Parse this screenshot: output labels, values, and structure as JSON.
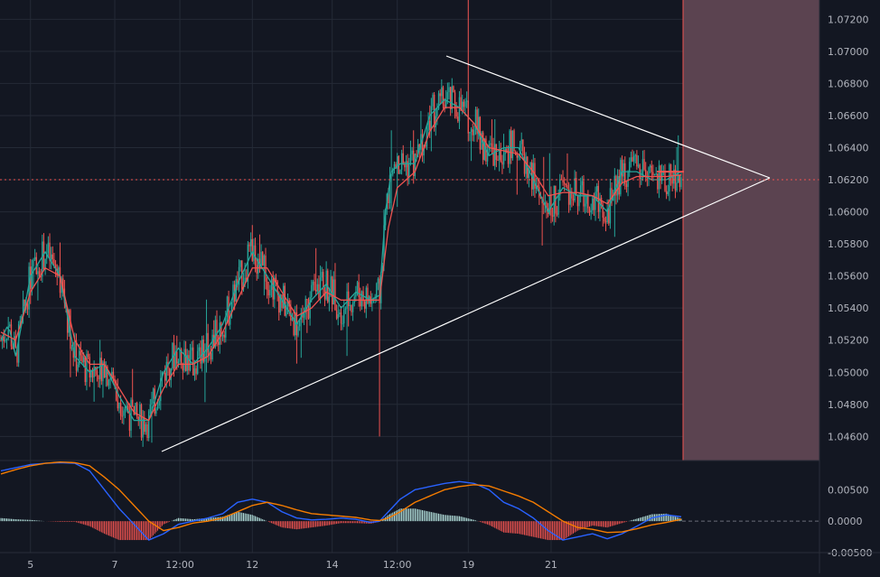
{
  "theme": {
    "background": "#131722",
    "grid": "#242a36",
    "text": "#b2b5be",
    "candle_up": "#26a69a",
    "candle_down": "#ef5350",
    "ma_fast": "#26a69a",
    "ma_slow": "#ef5350",
    "triangle": "#ffffff",
    "forecast_zone": "#5b4350",
    "forecast_border": "#ef5350",
    "price_line": "#ef5350",
    "macd_line": "#2962ff",
    "signal_line": "#f57c00",
    "hist_up": "#b2dfdb",
    "hist_down": "#ef5350"
  },
  "chart_data": [
    {
      "type": "candlestick",
      "pane": "price",
      "title": "",
      "x_ticks": [
        "5",
        "7",
        "12:00",
        "12",
        "14",
        "12:00",
        "19",
        "21"
      ],
      "y_ticks": [
        "1.07200",
        "1.07000",
        "1.06800",
        "1.06600",
        "1.06400",
        "1.06200",
        "1.06000",
        "1.05800",
        "1.05600",
        "1.05400",
        "1.05200",
        "1.05000",
        "1.04800",
        "1.04600"
      ],
      "ylim": [
        1.0445,
        1.0732
      ],
      "grid": true,
      "current_price": 1.062,
      "series": [
        {
          "name": "",
          "style": "moving-average-fast",
          "key_points": [
            [
              0,
              1.052
            ],
            [
              5,
              1.053
            ],
            [
              10,
              1.051
            ],
            [
              20,
              1.056
            ],
            [
              30,
              1.0575
            ],
            [
              40,
              1.056
            ],
            [
              50,
              1.051
            ],
            [
              60,
              1.05
            ],
            [
              70,
              1.0505
            ],
            [
              80,
              1.0485
            ],
            [
              90,
              1.047
            ],
            [
              100,
              1.047
            ],
            [
              110,
              1.05
            ],
            [
              120,
              1.0515
            ],
            [
              130,
              1.0505
            ],
            [
              140,
              1.0515
            ],
            [
              150,
              1.053
            ],
            [
              160,
              1.0555
            ],
            [
              170,
              1.0575
            ],
            [
              180,
              1.056
            ],
            [
              190,
              1.0545
            ],
            [
              200,
              1.053
            ],
            [
              210,
              1.0545
            ],
            [
              220,
              1.0555
            ],
            [
              230,
              1.054
            ],
            [
              240,
              1.055
            ],
            [
              250,
              1.0545
            ],
            [
              256,
              1.0548
            ],
            [
              260,
              1.06
            ],
            [
              264,
              1.0625
            ],
            [
              270,
              1.063
            ],
            [
              280,
              1.063
            ],
            [
              290,
              1.066
            ],
            [
              300,
              1.067
            ],
            [
              310,
              1.0665
            ],
            [
              320,
              1.0655
            ],
            [
              330,
              1.0635
            ],
            [
              340,
              1.064
            ],
            [
              350,
              1.064
            ],
            [
              360,
              1.062
            ],
            [
              370,
              1.06
            ],
            [
              380,
              1.0615
            ],
            [
              390,
              1.061
            ],
            [
              400,
              1.061
            ],
            [
              410,
              1.06
            ],
            [
              420,
              1.0625
            ],
            [
              430,
              1.0625
            ],
            [
              440,
              1.062
            ],
            [
              450,
              1.062
            ],
            [
              460,
              1.0625
            ]
          ]
        },
        {
          "name": "",
          "style": "moving-average-slow",
          "key_points": [
            [
              0,
              1.0525
            ],
            [
              10,
              1.052
            ],
            [
              20,
              1.055
            ],
            [
              30,
              1.0565
            ],
            [
              40,
              1.056
            ],
            [
              50,
              1.052
            ],
            [
              60,
              1.0505
            ],
            [
              70,
              1.0505
            ],
            [
              80,
              1.049
            ],
            [
              90,
              1.0475
            ],
            [
              100,
              1.047
            ],
            [
              110,
              1.049
            ],
            [
              120,
              1.0505
            ],
            [
              130,
              1.0505
            ],
            [
              140,
              1.051
            ],
            [
              150,
              1.0525
            ],
            [
              160,
              1.0545
            ],
            [
              170,
              1.0565
            ],
            [
              180,
              1.0565
            ],
            [
              190,
              1.055
            ],
            [
              200,
              1.0535
            ],
            [
              210,
              1.054
            ],
            [
              220,
              1.055
            ],
            [
              230,
              1.0545
            ],
            [
              240,
              1.0545
            ],
            [
              250,
              1.0545
            ],
            [
              256,
              1.0545
            ],
            [
              262,
              1.059
            ],
            [
              268,
              1.0615
            ],
            [
              280,
              1.0625
            ],
            [
              290,
              1.065
            ],
            [
              300,
              1.0665
            ],
            [
              310,
              1.0665
            ],
            [
              320,
              1.0655
            ],
            [
              330,
              1.064
            ],
            [
              340,
              1.0638
            ],
            [
              350,
              1.0636
            ],
            [
              360,
              1.0625
            ],
            [
              370,
              1.061
            ],
            [
              380,
              1.0612
            ],
            [
              390,
              1.0612
            ],
            [
              400,
              1.061
            ],
            [
              410,
              1.0605
            ],
            [
              420,
              1.0618
            ],
            [
              430,
              1.0622
            ],
            [
              440,
              1.0622
            ],
            [
              450,
              1.0622
            ],
            [
              460,
              1.0623
            ]
          ]
        }
      ]
    },
    {
      "type": "macd",
      "pane": "oscillator",
      "y_ticks": [
        "0.00500",
        "0.0000",
        "-0.00500"
      ],
      "ylim": [
        -0.005,
        0.0095
      ],
      "series": [
        {
          "name": "",
          "style": "macd-line",
          "key_points": [
            [
              0,
              0.008
            ],
            [
              10,
              0.0085
            ],
            [
              20,
              0.009
            ],
            [
              30,
              0.0092
            ],
            [
              40,
              0.0093
            ],
            [
              50,
              0.0092
            ],
            [
              60,
              0.008
            ],
            [
              70,
              0.005
            ],
            [
              80,
              0.002
            ],
            [
              90,
              -0.0005
            ],
            [
              100,
              -0.003
            ],
            [
              110,
              -0.002
            ],
            [
              120,
              -0.0005
            ],
            [
              130,
              0.0
            ],
            [
              140,
              0.0005
            ],
            [
              150,
              0.0012
            ],
            [
              160,
              0.003
            ],
            [
              170,
              0.0035
            ],
            [
              180,
              0.003
            ],
            [
              190,
              0.0015
            ],
            [
              200,
              0.0005
            ],
            [
              210,
              0.0002
            ],
            [
              220,
              0.0003
            ],
            [
              230,
              0.0005
            ],
            [
              240,
              0.0003
            ],
            [
              250,
              -0.0002
            ],
            [
              256,
              0.0
            ],
            [
              262,
              0.0015
            ],
            [
              270,
              0.0035
            ],
            [
              280,
              0.005
            ],
            [
              290,
              0.0055
            ],
            [
              300,
              0.006
            ],
            [
              310,
              0.0063
            ],
            [
              320,
              0.006
            ],
            [
              330,
              0.005
            ],
            [
              340,
              0.003
            ],
            [
              350,
              0.002
            ],
            [
              360,
              0.0005
            ],
            [
              370,
              -0.0015
            ],
            [
              380,
              -0.003
            ],
            [
              390,
              -0.0025
            ],
            [
              400,
              -0.002
            ],
            [
              410,
              -0.0028
            ],
            [
              420,
              -0.002
            ],
            [
              430,
              -0.0008
            ],
            [
              440,
              0.0005
            ],
            [
              450,
              0.001
            ],
            [
              460,
              0.0007
            ]
          ]
        },
        {
          "name": "",
          "style": "signal-line",
          "key_points": [
            [
              0,
              0.0075
            ],
            [
              10,
              0.0082
            ],
            [
              20,
              0.0088
            ],
            [
              30,
              0.0092
            ],
            [
              40,
              0.0094
            ],
            [
              50,
              0.0093
            ],
            [
              60,
              0.0088
            ],
            [
              70,
              0.007
            ],
            [
              80,
              0.005
            ],
            [
              90,
              0.0025
            ],
            [
              100,
              0.0
            ],
            [
              110,
              -0.0015
            ],
            [
              120,
              -0.001
            ],
            [
              130,
              -0.0003
            ],
            [
              140,
              0.0
            ],
            [
              150,
              0.0005
            ],
            [
              160,
              0.0015
            ],
            [
              170,
              0.0025
            ],
            [
              180,
              0.003
            ],
            [
              190,
              0.0025
            ],
            [
              200,
              0.0018
            ],
            [
              210,
              0.0012
            ],
            [
              220,
              0.001
            ],
            [
              230,
              0.0008
            ],
            [
              240,
              0.0006
            ],
            [
              250,
              0.0002
            ],
            [
              256,
              0.0001
            ],
            [
              262,
              0.0005
            ],
            [
              270,
              0.0015
            ],
            [
              280,
              0.003
            ],
            [
              290,
              0.004
            ],
            [
              300,
              0.005
            ],
            [
              310,
              0.0055
            ],
            [
              320,
              0.0058
            ],
            [
              330,
              0.0056
            ],
            [
              340,
              0.0048
            ],
            [
              350,
              0.004
            ],
            [
              360,
              0.003
            ],
            [
              370,
              0.0015
            ],
            [
              380,
              0.0
            ],
            [
              390,
              -0.001
            ],
            [
              400,
              -0.0013
            ],
            [
              410,
              -0.0018
            ],
            [
              420,
              -0.0017
            ],
            [
              430,
              -0.0012
            ],
            [
              440,
              -0.0006
            ],
            [
              450,
              -0.0002
            ],
            [
              460,
              0.0003
            ]
          ]
        }
      ]
    }
  ]
}
